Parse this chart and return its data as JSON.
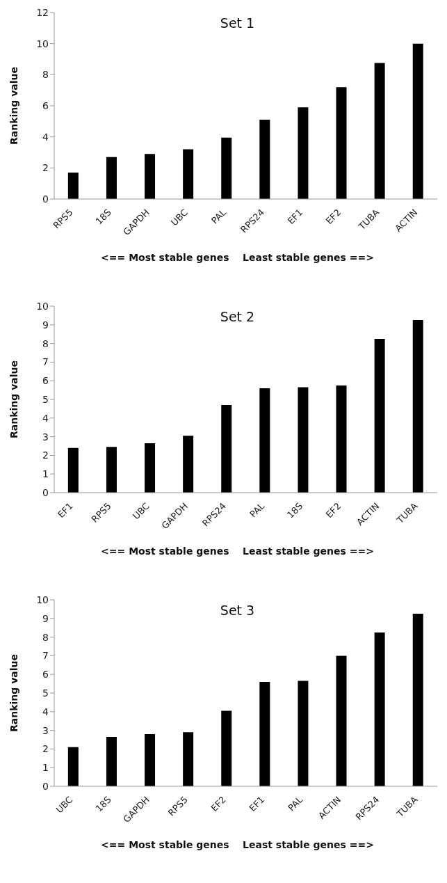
{
  "chart_data": [
    {
      "type": "bar",
      "title": "Set 1",
      "xlabel": "<== Most stable genes    Least stable genes ==>",
      "ylabel": "Ranking value",
      "categories": [
        "RPS5",
        "18S",
        "GAPDH",
        "UBC",
        "PAL",
        "RPS24",
        "EF1",
        "EF2",
        "TUBA",
        "ACTIN"
      ],
      "values": [
        1.7,
        2.7,
        2.9,
        3.2,
        3.95,
        5.1,
        5.9,
        7.2,
        8.75,
        10.0
      ],
      "color": "#000000",
      "ylim": [
        0,
        12
      ],
      "yticks": [
        0,
        2,
        4,
        6,
        8,
        10,
        12
      ],
      "grid": false
    },
    {
      "type": "bar",
      "title": "Set 2",
      "xlabel": "<== Most stable genes    Least stable genes ==>",
      "ylabel": "Ranking value",
      "categories": [
        "EF1",
        "RPS5",
        "UBC",
        "GAPDH",
        "RPS24",
        "PAL",
        "18S",
        "EF2",
        "ACTIN",
        "TUBA"
      ],
      "values": [
        2.4,
        2.45,
        2.65,
        3.05,
        4.7,
        5.6,
        5.65,
        5.75,
        8.25,
        9.25
      ],
      "color": "#000000",
      "ylim": [
        0,
        10
      ],
      "yticks": [
        0,
        1,
        2,
        3,
        4,
        5,
        6,
        7,
        8,
        9,
        10
      ],
      "grid": false
    },
    {
      "type": "bar",
      "title": "Set 3",
      "xlabel": "<== Most stable genes    Least stable genes ==>",
      "ylabel": "Ranking value",
      "categories": [
        "UBC",
        "18S",
        "GAPDH",
        "RPS5",
        "EF2",
        "EF1",
        "PAL",
        "ACTIN",
        "RPS24",
        "TUBA"
      ],
      "values": [
        2.1,
        2.65,
        2.8,
        2.9,
        4.05,
        5.6,
        5.65,
        7.0,
        8.25,
        9.25
      ],
      "color": "#000000",
      "ylim": [
        0,
        10
      ],
      "yticks": [
        0,
        1,
        2,
        3,
        4,
        5,
        6,
        7,
        8,
        9,
        10
      ],
      "grid": false
    }
  ]
}
